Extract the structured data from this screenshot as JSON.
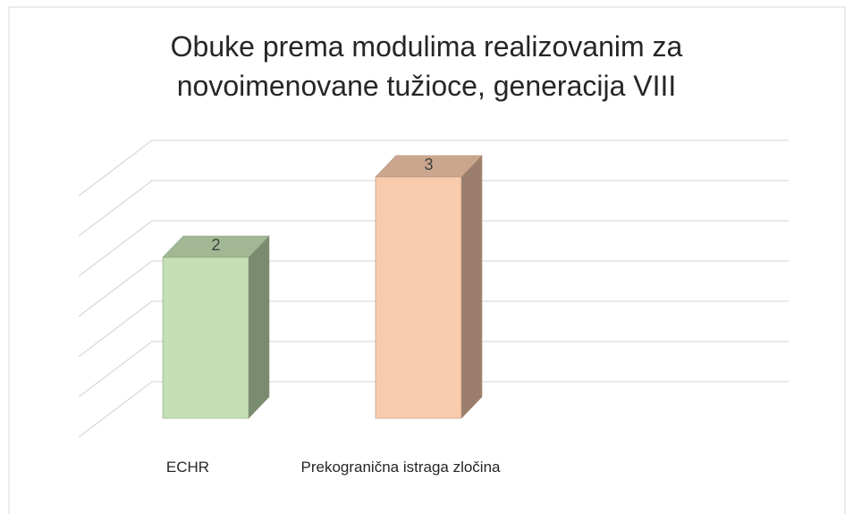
{
  "chart_data": {
    "type": "bar3d",
    "title": "Obuke prema modulima realizovanim za novoimenovane tužioce, generacija VIII",
    "categories": [
      "ECHR",
      "Prekogranična istraga zločina"
    ],
    "values": [
      2,
      3
    ],
    "colors": [
      "#c5e0b4",
      "#f8cbad"
    ],
    "ylim": [
      0,
      3
    ],
    "yticks": [
      0,
      0.5,
      1,
      1.5,
      2,
      2.5,
      3
    ],
    "grid": true
  }
}
